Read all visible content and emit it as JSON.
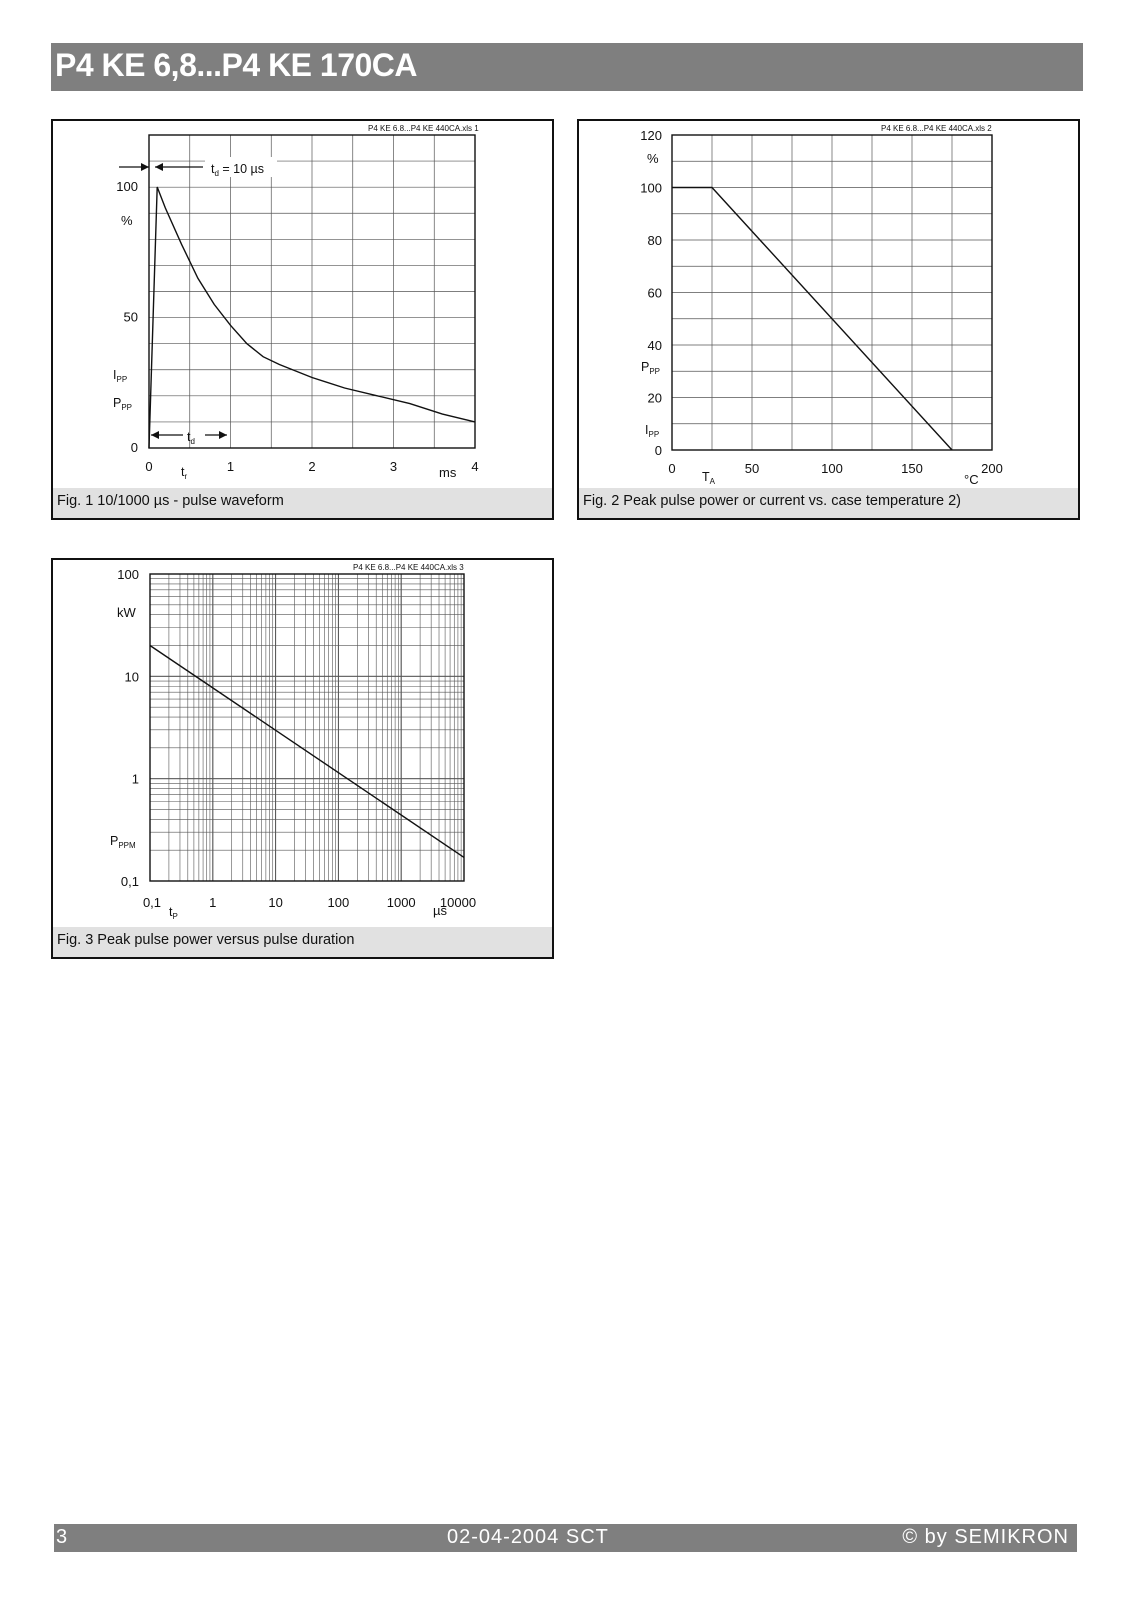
{
  "header": {
    "title": "P4 KE 6,8...P4 KE 170CA"
  },
  "footer": {
    "page": "3",
    "date": "02-04-2004  SCT",
    "copyright": "© by SEMIKRON"
  },
  "figures": [
    {
      "file_ref": "P4 KE 6.8...P4 KE 440CA.xls 1",
      "caption": "Fig. 1 10/1000 µs - pulse waveform",
      "annotation_td_eq": "t",
      "annotation_td_eq_sub": "d",
      "annotation_td_eq_rest": " = 10 µs",
      "annotation_td": "t",
      "annotation_td_sub": "d",
      "label_ipp": "I",
      "label_ipp_sub": "PP",
      "label_ppp": "P",
      "label_ppp_sub": "PP",
      "label_tr": "t",
      "label_tr_sub": "r",
      "y_unit": "%",
      "x_unit": "ms",
      "y_ticks": [
        "100",
        "50",
        "0"
      ],
      "x_ticks": [
        "0",
        "1",
        "2",
        "3",
        "4"
      ]
    },
    {
      "file_ref": "P4 KE 6.8...P4 KE 440CA.xls 2",
      "caption": "Fig. 2 Peak pulse power or current vs. case temperature 2)",
      "y_unit": "%",
      "x_unit": "°C",
      "label_ppp": "P",
      "label_ppp_sub": "PP",
      "label_ipp": "I",
      "label_ipp_sub": "PP",
      "label_ta": "T",
      "label_ta_sub": "A",
      "y_ticks": [
        "120",
        "100",
        "80",
        "60",
        "40",
        "20",
        "0"
      ],
      "x_ticks": [
        "0",
        "50",
        "100",
        "150",
        "200"
      ]
    },
    {
      "file_ref": "P4 KE 6.8...P4 KE 440CA.xls 3",
      "caption": "Fig. 3 Peak pulse power versus pulse duration",
      "y_unit": "kW",
      "x_unit": "µs",
      "label_pppm": "P",
      "label_pppm_sub": "PPM",
      "label_tp": "t",
      "label_tp_sub": "P",
      "y_ticks": [
        "100",
        "10",
        "1",
        "0,1"
      ],
      "x_ticks": [
        "0,1",
        "1",
        "10",
        "100",
        "1000",
        "10000"
      ]
    }
  ],
  "chart_data": [
    {
      "type": "line",
      "title": "Fig. 1 10/1000 µs - pulse waveform",
      "xlabel": "ms",
      "ylabel": "%",
      "xlim": [
        0,
        4
      ],
      "ylim": [
        0,
        100
      ],
      "x": [
        0.0,
        0.1,
        0.2,
        0.4,
        0.6,
        0.8,
        1.0,
        1.2,
        1.4,
        1.6,
        2.0,
        2.4,
        2.8,
        3.2,
        3.6,
        4.0
      ],
      "y": [
        0,
        100,
        92,
        78,
        65,
        55,
        47,
        40,
        35,
        32,
        27,
        23,
        20,
        17,
        13,
        10
      ]
    },
    {
      "type": "line",
      "title": "Fig. 2 Peak pulse power or current vs. case temperature 2)",
      "xlabel": "°C",
      "ylabel": "%",
      "xlim": [
        0,
        200
      ],
      "ylim": [
        0,
        120
      ],
      "x": [
        0,
        25,
        175
      ],
      "y": [
        100,
        100,
        0
      ]
    },
    {
      "type": "line",
      "title": "Fig. 3 Peak pulse power versus pulse duration",
      "xlabel": "µs",
      "ylabel": "kW",
      "log_x": true,
      "log_y": true,
      "xlim": [
        0.1,
        10000
      ],
      "ylim": [
        0.1,
        100
      ],
      "x": [
        0.1,
        10000
      ],
      "y": [
        20,
        0.17
      ]
    }
  ]
}
